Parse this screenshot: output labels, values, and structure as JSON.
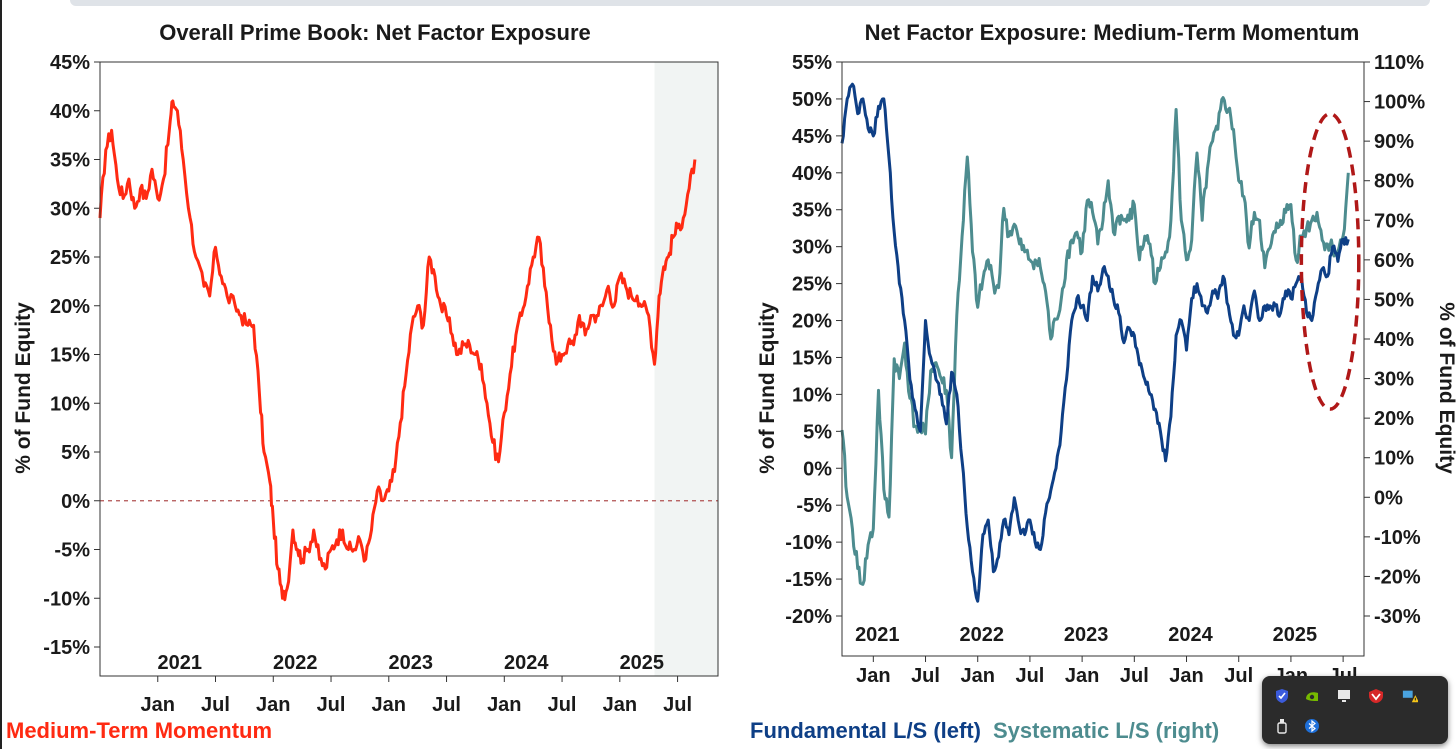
{
  "colors": {
    "momentum": "#ff2a12",
    "fundamental": "#0e3f86",
    "systematic": "#4d8c8f",
    "zero_line": "#b05050",
    "highlight": "#f1f4f3",
    "ellipse": "#b01818",
    "text": "#1a1a1a"
  },
  "legend": {
    "left": "Medium-Term Momentum",
    "fundamental": "Fundamental L/S (left)",
    "systematic": "Systematic L/S (right)"
  },
  "tray": {
    "icons": [
      "shield-icon",
      "nvidia-icon",
      "monitor-icon",
      "antivirus-icon",
      "network-warning-icon",
      "usb-icon",
      "bluetooth-icon"
    ]
  },
  "chart_data": [
    {
      "type": "line",
      "title": "Overall Prime Book: Net Factor Exposure",
      "ylabel": "% of Fund Equity",
      "ylim": [
        -15,
        45
      ],
      "yticks": [
        "45%",
        "40%",
        "35%",
        "30%",
        "25%",
        "20%",
        "15%",
        "10%",
        "5%",
        "0%",
        "-5%",
        "-10%",
        "-15%"
      ],
      "ytick_values": [
        45,
        40,
        35,
        30,
        25,
        20,
        15,
        10,
        5,
        0,
        -5,
        -10,
        -15
      ],
      "xlim": [
        2020.5,
        2025.85
      ],
      "month_ticks": [
        "Jan",
        "Jul",
        "Jan",
        "Jul",
        "Jan",
        "Jul",
        "Jan",
        "Jul",
        "Jan",
        "Jul"
      ],
      "month_positions": [
        2021.0,
        2021.5,
        2022.0,
        2022.5,
        2023.0,
        2023.5,
        2024.0,
        2024.5,
        2025.0,
        2025.5
      ],
      "year_labels": [
        "2021",
        "2022",
        "2023",
        "2024",
        "2025"
      ],
      "year_positions": [
        2021.0,
        2022.0,
        2023.0,
        2024.0,
        2025.0
      ],
      "shaded_region": [
        2025.3,
        2025.85
      ],
      "zero_line": true,
      "series": [
        {
          "name": "Medium-Term Momentum",
          "x": [
            2020.5,
            2020.55,
            2020.6,
            2020.65,
            2020.7,
            2020.75,
            2020.8,
            2020.85,
            2020.9,
            2020.95,
            2021.0,
            2021.05,
            2021.1,
            2021.13,
            2021.17,
            2021.22,
            2021.28,
            2021.33,
            2021.4,
            2021.45,
            2021.5,
            2021.55,
            2021.6,
            2021.67,
            2021.72,
            2021.78,
            2021.83,
            2021.88,
            2021.92,
            2021.97,
            2022.0,
            2022.04,
            2022.08,
            2022.12,
            2022.17,
            2022.21,
            2022.25,
            2022.3,
            2022.35,
            2022.4,
            2022.45,
            2022.5,
            2022.55,
            2022.6,
            2022.65,
            2022.7,
            2022.75,
            2022.8,
            2022.85,
            2022.9,
            2022.95,
            2023.0,
            2023.05,
            2023.1,
            2023.15,
            2023.2,
            2023.25,
            2023.3,
            2023.35,
            2023.4,
            2023.45,
            2023.5,
            2023.55,
            2023.6,
            2023.65,
            2023.7,
            2023.75,
            2023.8,
            2023.85,
            2023.9,
            2023.95,
            2024.0,
            2024.05,
            2024.1,
            2024.15,
            2024.2,
            2024.25,
            2024.3,
            2024.35,
            2024.4,
            2024.45,
            2024.5,
            2024.55,
            2024.6,
            2024.65,
            2024.7,
            2024.75,
            2024.8,
            2024.85,
            2024.9,
            2024.95,
            2025.0,
            2025.05,
            2025.1,
            2025.15,
            2025.2,
            2025.25,
            2025.3,
            2025.34,
            2025.38,
            2025.42,
            2025.46,
            2025.5,
            2025.55,
            2025.6,
            2025.65
          ],
          "values": [
            29,
            36,
            38,
            33,
            31,
            33,
            30,
            32,
            31,
            34,
            31,
            33,
            38,
            41,
            40,
            35,
            29,
            25,
            22,
            21,
            26,
            23,
            21,
            20,
            19,
            18,
            18,
            11,
            5,
            2,
            -2,
            -7,
            -10,
            -9,
            -3,
            -5,
            -6,
            -5,
            -3,
            -6,
            -7,
            -5,
            -4,
            -3,
            -5,
            -5,
            -4,
            -6,
            -3,
            1,
            0,
            1,
            3,
            8,
            13,
            18,
            20,
            18,
            25,
            23,
            20,
            19,
            17,
            15,
            16,
            16,
            15,
            14,
            10,
            6,
            4,
            9,
            13,
            17,
            19,
            22,
            25,
            27,
            22,
            18,
            14,
            15,
            16,
            16,
            19,
            17,
            19,
            19,
            20,
            22,
            20,
            23,
            22,
            21,
            21,
            20,
            19,
            14,
            21,
            24,
            25,
            27,
            28,
            29,
            32,
            35
          ]
        }
      ]
    },
    {
      "type": "line",
      "title": "Net Factor Exposure: Medium-Term Momentum",
      "ylabel": "% of Fund Equity",
      "ylabel_right": "% of Fund Equity",
      "ylim": [
        -20,
        55
      ],
      "ylim_right": [
        -30,
        110
      ],
      "yticks": [
        "55%",
        "50%",
        "45%",
        "40%",
        "35%",
        "30%",
        "25%",
        "20%",
        "15%",
        "10%",
        "5%",
        "0%",
        "-5%",
        "-10%",
        "-15%",
        "-20%"
      ],
      "ytick_values": [
        55,
        50,
        45,
        40,
        35,
        30,
        25,
        20,
        15,
        10,
        5,
        0,
        -5,
        -10,
        -15,
        -20
      ],
      "yticks_right": [
        "110%",
        "100%",
        "90%",
        "80%",
        "70%",
        "60%",
        "50%",
        "40%",
        "30%",
        "20%",
        "10%",
        "0%",
        "-10%",
        "-20%",
        "-30%"
      ],
      "ytick_values_right": [
        110,
        100,
        90,
        80,
        70,
        60,
        50,
        40,
        30,
        20,
        10,
        0,
        -10,
        -20,
        -30
      ],
      "xlim": [
        2020.7,
        2025.7
      ],
      "month_ticks": [
        "Jan",
        "Jul",
        "Jan",
        "Jul",
        "Jan",
        "Jul",
        "Jan",
        "Jul",
        "Jan",
        "Jul"
      ],
      "month_positions": [
        2021.0,
        2021.5,
        2022.0,
        2022.5,
        2023.0,
        2023.5,
        2024.0,
        2024.5,
        2025.0,
        2025.5
      ],
      "year_labels": [
        "2021",
        "2022",
        "2023",
        "2024",
        "2025"
      ],
      "year_positions": [
        2021.0,
        2022.0,
        2023.0,
        2024.0,
        2025.0
      ],
      "series": [
        {
          "name": "Fundamental L/S (left)",
          "axis": "left",
          "x": [
            2020.7,
            2020.75,
            2020.8,
            2020.85,
            2020.9,
            2020.95,
            2021.0,
            2021.05,
            2021.1,
            2021.15,
            2021.2,
            2021.25,
            2021.3,
            2021.35,
            2021.4,
            2021.45,
            2021.5,
            2021.55,
            2021.6,
            2021.65,
            2021.7,
            2021.75,
            2021.8,
            2021.85,
            2021.9,
            2021.95,
            2022.0,
            2022.05,
            2022.1,
            2022.15,
            2022.2,
            2022.25,
            2022.3,
            2022.35,
            2022.4,
            2022.45,
            2022.5,
            2022.55,
            2022.6,
            2022.65,
            2022.7,
            2022.75,
            2022.8,
            2022.85,
            2022.9,
            2022.95,
            2023.0,
            2023.05,
            2023.1,
            2023.15,
            2023.2,
            2023.25,
            2023.3,
            2023.35,
            2023.4,
            2023.45,
            2023.5,
            2023.55,
            2023.6,
            2023.65,
            2023.7,
            2023.75,
            2023.8,
            2023.85,
            2023.9,
            2023.95,
            2024.0,
            2024.05,
            2024.1,
            2024.15,
            2024.2,
            2024.25,
            2024.3,
            2024.35,
            2024.4,
            2024.45,
            2024.5,
            2024.55,
            2024.6,
            2024.65,
            2024.7,
            2024.75,
            2024.8,
            2024.85,
            2024.9,
            2024.95,
            2025.0,
            2025.05,
            2025.1,
            2025.15,
            2025.2,
            2025.25,
            2025.3,
            2025.35,
            2025.4,
            2025.45,
            2025.5,
            2025.55
          ],
          "values": [
            44,
            50,
            52,
            48,
            50,
            46,
            45,
            49,
            50,
            42,
            32,
            25,
            20,
            12,
            8,
            5,
            20,
            15,
            12,
            10,
            6,
            13,
            10,
            1,
            -8,
            -14,
            -18,
            -9,
            -7,
            -14,
            -12,
            -7,
            -9,
            -4,
            -8,
            -9,
            -7,
            -10,
            -11,
            -6,
            -3,
            0,
            5,
            12,
            20,
            23,
            22,
            20,
            26,
            24,
            27,
            26,
            23,
            21,
            17,
            19,
            18,
            14,
            12,
            10,
            8,
            5,
            1,
            7,
            18,
            20,
            16,
            23,
            25,
            22,
            21,
            24,
            23,
            26,
            22,
            18,
            18,
            22,
            20,
            24,
            20,
            22,
            22,
            22,
            21,
            24,
            23,
            25,
            26,
            21,
            20,
            24,
            27,
            26,
            30,
            28,
            31,
            31
          ]
        },
        {
          "name": "Systematic L/S (right)",
          "axis": "right",
          "x": [
            2020.7,
            2020.75,
            2020.8,
            2020.85,
            2020.9,
            2020.95,
            2021.0,
            2021.05,
            2021.1,
            2021.15,
            2021.2,
            2021.25,
            2021.3,
            2021.35,
            2021.4,
            2021.45,
            2021.5,
            2021.55,
            2021.6,
            2021.65,
            2021.7,
            2021.75,
            2021.8,
            2021.85,
            2021.9,
            2021.95,
            2022.0,
            2022.05,
            2022.1,
            2022.15,
            2022.2,
            2022.25,
            2022.3,
            2022.35,
            2022.4,
            2022.45,
            2022.5,
            2022.55,
            2022.6,
            2022.65,
            2022.7,
            2022.75,
            2022.8,
            2022.85,
            2022.9,
            2022.95,
            2023.0,
            2023.05,
            2023.1,
            2023.15,
            2023.2,
            2023.25,
            2023.3,
            2023.35,
            2023.4,
            2023.45,
            2023.5,
            2023.55,
            2023.6,
            2023.65,
            2023.7,
            2023.75,
            2023.8,
            2023.85,
            2023.9,
            2023.95,
            2024.0,
            2024.05,
            2024.1,
            2024.15,
            2024.2,
            2024.25,
            2024.3,
            2024.35,
            2024.4,
            2024.45,
            2024.5,
            2024.55,
            2024.6,
            2024.65,
            2024.7,
            2024.75,
            2024.8,
            2024.85,
            2024.9,
            2024.95,
            2025.0,
            2025.05,
            2025.1,
            2025.15,
            2025.2,
            2025.25,
            2025.3,
            2025.35,
            2025.4,
            2025.45,
            2025.5,
            2025.55
          ],
          "values": [
            17,
            0,
            -8,
            -18,
            -22,
            -12,
            -8,
            27,
            2,
            -5,
            35,
            30,
            39,
            25,
            18,
            17,
            16,
            32,
            34,
            30,
            27,
            10,
            46,
            66,
            86,
            62,
            48,
            55,
            60,
            54,
            53,
            73,
            66,
            69,
            64,
            62,
            60,
            60,
            58,
            52,
            40,
            45,
            50,
            60,
            65,
            67,
            62,
            75,
            72,
            64,
            70,
            80,
            67,
            71,
            70,
            70,
            74,
            60,
            66,
            64,
            54,
            58,
            62,
            70,
            98,
            70,
            60,
            65,
            87,
            70,
            83,
            90,
            93,
            101,
            98,
            93,
            80,
            76,
            63,
            72,
            70,
            58,
            63,
            67,
            70,
            72,
            74,
            60,
            66,
            68,
            70,
            72,
            65,
            64,
            63,
            62,
            66,
            82
          ]
        }
      ],
      "highlight": {
        "shape": "dashed-ellipse",
        "x_range": [
          2025.1,
          2025.65
        ],
        "y_range": [
          8,
          48
        ]
      }
    }
  ]
}
